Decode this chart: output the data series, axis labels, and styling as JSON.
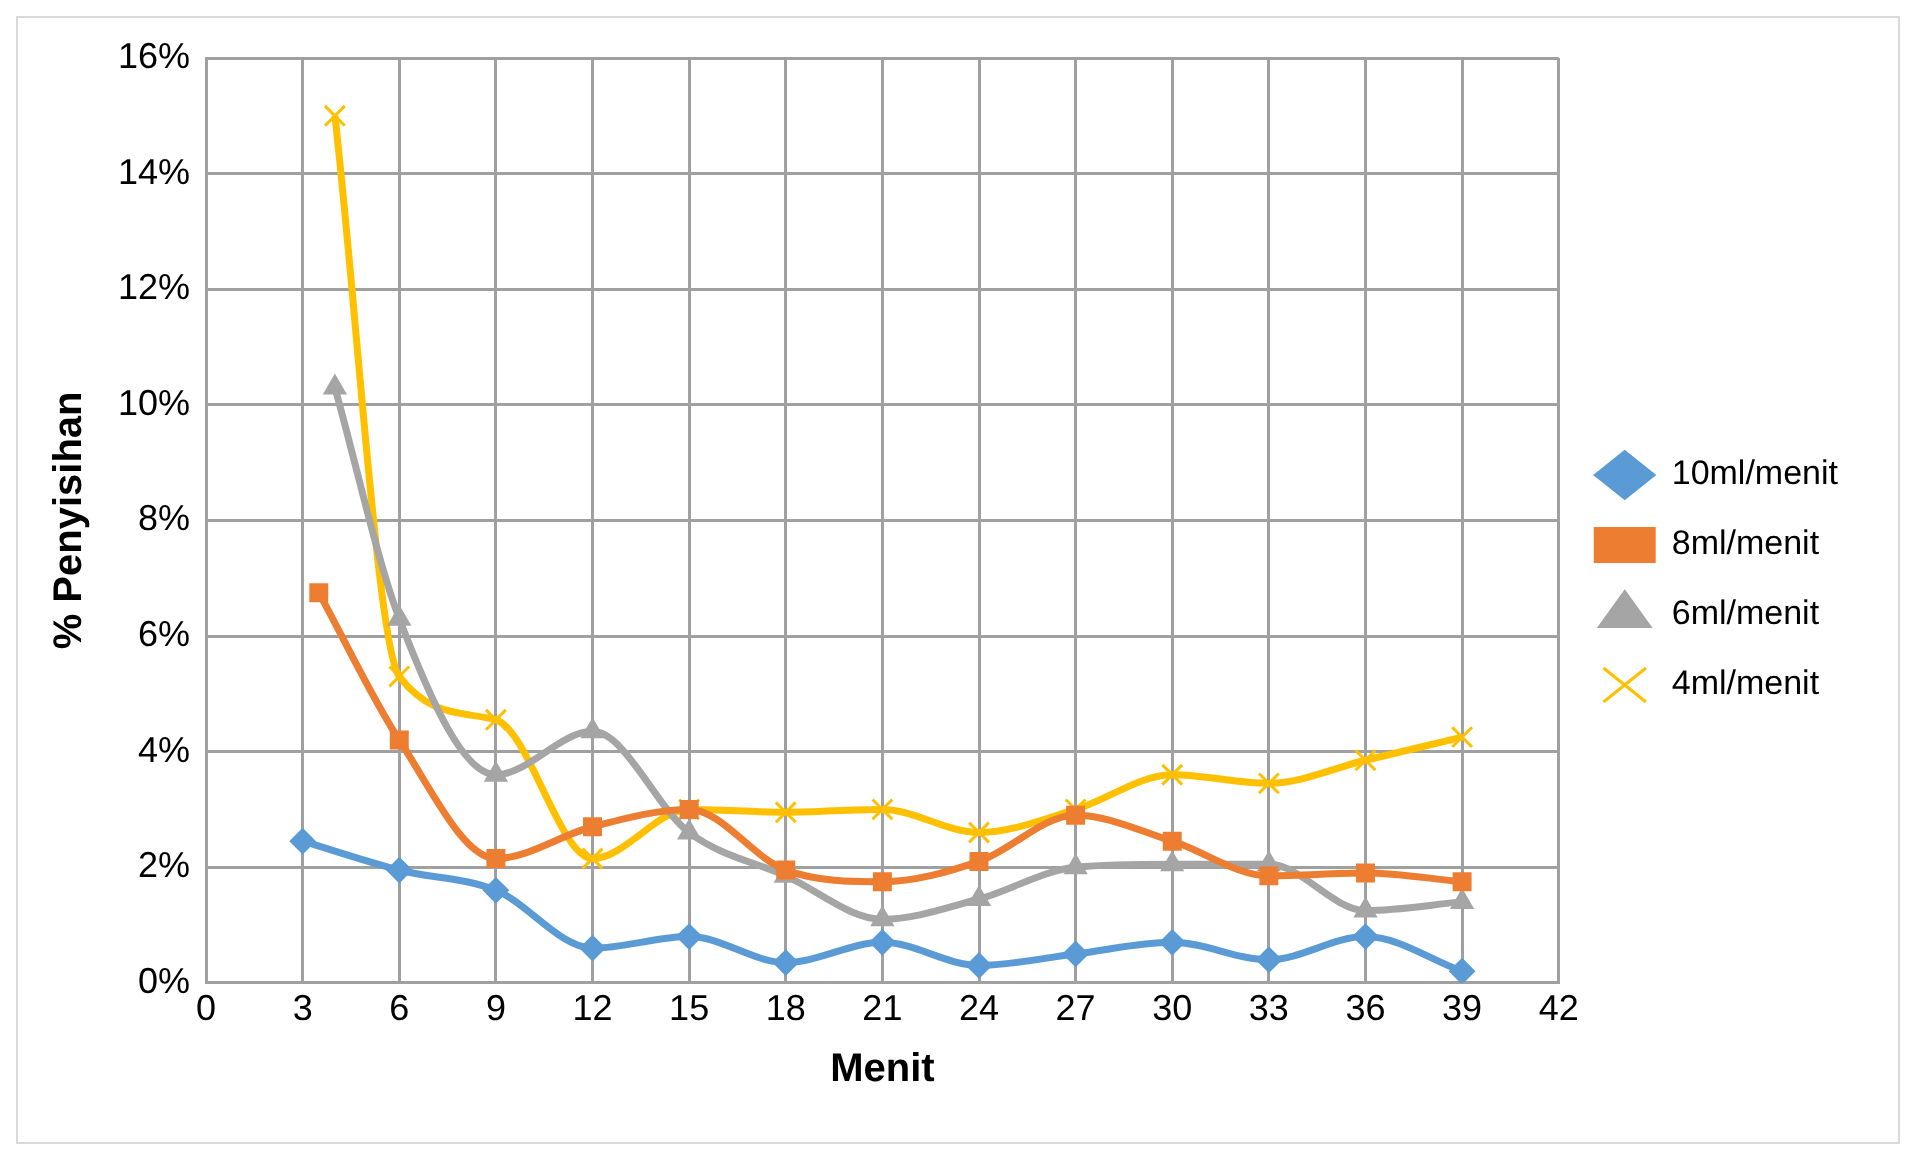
{
  "chart_data": {
    "type": "line",
    "xlabel": "Menit",
    "ylabel": "% Penyisihan",
    "xlim": [
      0,
      42
    ],
    "xticks": [
      0,
      3,
      6,
      9,
      12,
      15,
      18,
      21,
      24,
      27,
      30,
      33,
      36,
      39,
      42
    ],
    "ylim": [
      0,
      16
    ],
    "yticks": [
      {
        "value": 0,
        "label": "0%"
      },
      {
        "value": 2,
        "label": "2%"
      },
      {
        "value": 4,
        "label": "4%"
      },
      {
        "value": 6,
        "label": "6%"
      },
      {
        "value": 8,
        "label": "8%"
      },
      {
        "value": 10,
        "label": "10%"
      },
      {
        "value": 12,
        "label": "12%"
      },
      {
        "value": 14,
        "label": "14%"
      },
      {
        "value": 16,
        "label": "16%"
      }
    ],
    "grid": true,
    "legend": "right",
    "series": [
      {
        "name": "10ml/menit",
        "color": "#5b9bd5",
        "marker": "diamond",
        "x": [
          3,
          6,
          9,
          12,
          15,
          18,
          21,
          24,
          27,
          30,
          33,
          36,
          39
        ],
        "values": [
          2.45,
          1.95,
          1.6,
          0.6,
          0.8,
          0.35,
          0.7,
          0.3,
          0.5,
          0.7,
          0.4,
          0.8,
          0.2
        ]
      },
      {
        "name": "8ml/menit",
        "color": "#ed7d31",
        "marker": "square",
        "x": [
          3.5,
          6,
          9,
          12,
          15,
          18,
          21,
          24,
          27,
          30,
          33,
          36,
          39
        ],
        "values": [
          6.75,
          4.2,
          2.15,
          2.7,
          3.0,
          1.95,
          1.75,
          2.1,
          2.9,
          2.45,
          1.85,
          1.9,
          1.75
        ]
      },
      {
        "name": "6ml/menit",
        "color": "#a5a5a5",
        "marker": "triangle",
        "x": [
          4,
          6,
          9,
          12,
          15,
          18,
          21,
          24,
          27,
          30,
          33,
          36,
          39
        ],
        "values": [
          10.3,
          6.3,
          3.6,
          4.35,
          2.6,
          1.85,
          1.1,
          1.45,
          2.0,
          2.05,
          2.05,
          1.25,
          1.4
        ]
      },
      {
        "name": "4ml/menit",
        "color": "#ffc000",
        "marker": "cross",
        "x": [
          4,
          6,
          9,
          12,
          15,
          18,
          21,
          24,
          27,
          30,
          33,
          36,
          39
        ],
        "values": [
          15.0,
          5.3,
          4.55,
          2.15,
          3.0,
          2.95,
          3.0,
          2.6,
          3.0,
          3.6,
          3.45,
          3.85,
          4.25
        ]
      }
    ]
  }
}
